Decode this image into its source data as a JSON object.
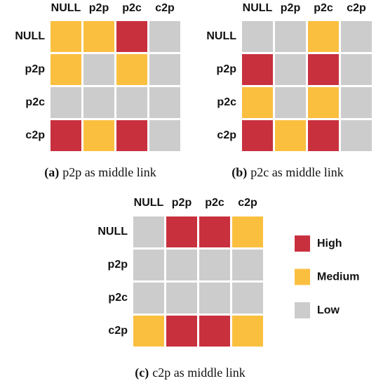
{
  "panels": [
    {
      "label": "(a)",
      "caption": "p2p as middle link",
      "columns": [
        "NULL",
        "p2p",
        "p2c",
        "c2p"
      ],
      "rows": [
        "NULL",
        "p2p",
        "p2c",
        "c2p"
      ],
      "cells": [
        [
          "Medium",
          "Medium",
          "High",
          "Low"
        ],
        [
          "Medium",
          "Low",
          "Medium",
          "Low"
        ],
        [
          "Low",
          "Low",
          "Low",
          "Low"
        ],
        [
          "High",
          "Medium",
          "High",
          "Low"
        ]
      ]
    },
    {
      "label": "(b)",
      "caption": "p2c as middle link",
      "columns": [
        "NULL",
        "p2p",
        "p2c",
        "c2p"
      ],
      "rows": [
        "NULL",
        "p2p",
        "p2c",
        "c2p"
      ],
      "cells": [
        [
          "Low",
          "Low",
          "Medium",
          "Low"
        ],
        [
          "High",
          "Low",
          "High",
          "Low"
        ],
        [
          "Medium",
          "Low",
          "Medium",
          "Low"
        ],
        [
          "High",
          "Medium",
          "High",
          "Low"
        ]
      ]
    },
    {
      "label": "(c)",
      "caption": "c2p as middle link",
      "columns": [
        "NULL",
        "p2p",
        "p2c",
        "c2p"
      ],
      "rows": [
        "NULL",
        "p2p",
        "p2c",
        "c2p"
      ],
      "cells": [
        [
          "Low",
          "High",
          "High",
          "Medium"
        ],
        [
          "Low",
          "Low",
          "Low",
          "Low"
        ],
        [
          "Low",
          "Low",
          "Low",
          "Low"
        ],
        [
          "Medium",
          "High",
          "High",
          "Medium"
        ]
      ]
    }
  ],
  "legend": {
    "items": [
      {
        "name": "High",
        "color": "#c9303e"
      },
      {
        "name": "Medium",
        "color": "#fbbf40"
      },
      {
        "name": "Low",
        "color": "#cccccc"
      }
    ]
  }
}
